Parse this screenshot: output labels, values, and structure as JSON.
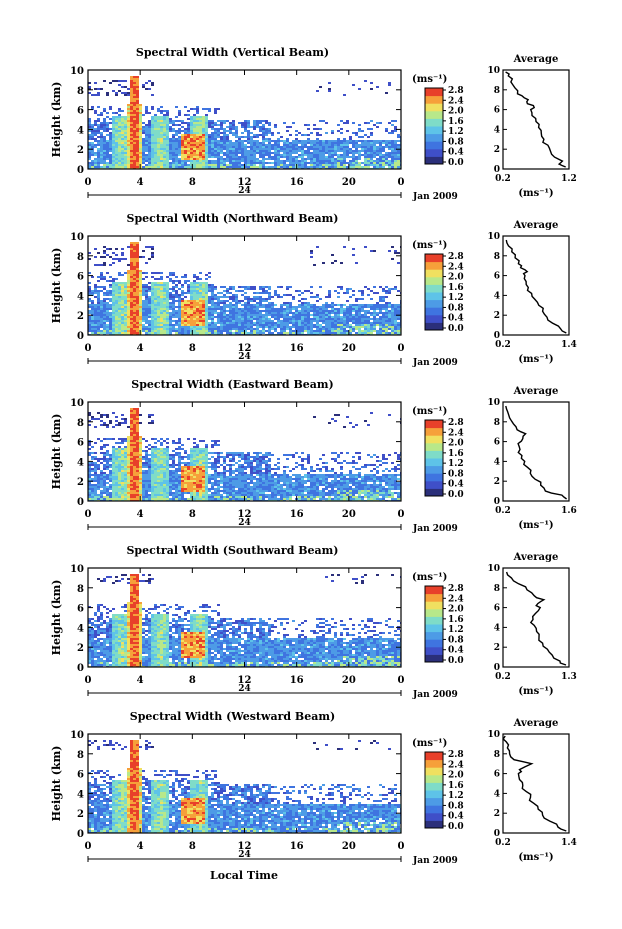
{
  "figure": {
    "xaxis_label": "Local Time",
    "date_label": "Jan 2009",
    "day_label": "24",
    "colorbar_unit": "(ms⁻¹)",
    "profile_title": "Average",
    "profile_xlabel": "(ms⁻¹)",
    "colors": {
      "colormap": [
        "#2b2f7a",
        "#3f4fc8",
        "#3f74e0",
        "#4d9be6",
        "#5ec3e8",
        "#7fdcc8",
        "#b8e88a",
        "#f0e060",
        "#f6a03a",
        "#e8402a"
      ],
      "profile_line": "#000000",
      "background": "#ffffff"
    }
  },
  "chart_data": [
    {
      "type": "heatmap",
      "title": "Spectral Width (Vertical Beam)",
      "xlabel": "",
      "ylabel": "Height (km)",
      "xlim": [
        0,
        24
      ],
      "ylim": [
        0,
        10
      ],
      "xticks": [
        "0",
        "4",
        "8",
        "12",
        "16",
        "20",
        "0"
      ],
      "yticks": [
        "0",
        "2",
        "4",
        "6",
        "8",
        "10"
      ],
      "colorbar": {
        "range": [
          0.0,
          2.8
        ],
        "ticks": [
          "2.8",
          "2.4",
          "2.0",
          "1.6",
          "1.2",
          "0.8",
          "0.4",
          "0.0"
        ]
      },
      "features": {
        "tower_hour": 3.5,
        "tower_top_km": 9.5,
        "cell_hours": [
          2.5,
          5.5,
          8.5
        ],
        "low_layer_top_km": 3.0,
        "high_patch_km": [
          7.5,
          9.0
        ]
      },
      "profile": {
        "title": "Average",
        "xlim": [
          0.2,
          1.2
        ],
        "xticks": [
          "0.2",
          "1.2"
        ],
        "yticks": [
          "0",
          "2",
          "4",
          "6",
          "8",
          "10"
        ],
        "points": [
          [
            1.15,
            0.2
          ],
          [
            1.05,
            0.5
          ],
          [
            1.1,
            0.8
          ],
          [
            0.98,
            1.2
          ],
          [
            0.92,
            1.8
          ],
          [
            0.88,
            2.4
          ],
          [
            0.82,
            3.0
          ],
          [
            0.78,
            3.6
          ],
          [
            0.74,
            4.2
          ],
          [
            0.7,
            4.8
          ],
          [
            0.64,
            5.4
          ],
          [
            0.62,
            6.0
          ],
          [
            0.66,
            6.4
          ],
          [
            0.56,
            6.8
          ],
          [
            0.52,
            7.2
          ],
          [
            0.42,
            7.6
          ],
          [
            0.38,
            8.2
          ],
          [
            0.32,
            8.8
          ],
          [
            0.28,
            9.4
          ],
          [
            0.24,
            9.8
          ]
        ]
      }
    },
    {
      "type": "heatmap",
      "title": "Spectral Width (Northward Beam)",
      "xlabel": "",
      "ylabel": "Height (km)",
      "xlim": [
        0,
        24
      ],
      "ylim": [
        0,
        10
      ],
      "xticks": [
        "0",
        "4",
        "8",
        "12",
        "16",
        "20",
        "0"
      ],
      "yticks": [
        "0",
        "2",
        "4",
        "6",
        "8",
        "10"
      ],
      "colorbar": {
        "range": [
          0.0,
          2.8
        ],
        "ticks": [
          "2.8",
          "2.4",
          "2.0",
          "1.6",
          "1.2",
          "0.8",
          "0.4",
          "0.0"
        ]
      },
      "features": {
        "tower_hour": 3.5,
        "tower_top_km": 9.5,
        "cell_hours": [
          2.5,
          5.5,
          8.5
        ],
        "low_layer_top_km": 3.2,
        "high_patch_km": [
          7.0,
          9.0
        ]
      },
      "profile": {
        "title": "Average",
        "xlim": [
          0.2,
          1.4
        ],
        "xticks": [
          "0.2",
          "1.4"
        ],
        "yticks": [
          "0",
          "2",
          "4",
          "6",
          "8",
          "10"
        ],
        "points": [
          [
            1.35,
            0.2
          ],
          [
            1.25,
            0.6
          ],
          [
            1.1,
            1.2
          ],
          [
            1.0,
            1.8
          ],
          [
            0.92,
            2.4
          ],
          [
            0.85,
            3.0
          ],
          [
            0.78,
            3.6
          ],
          [
            0.72,
            4.2
          ],
          [
            0.66,
            4.8
          ],
          [
            0.62,
            5.4
          ],
          [
            0.6,
            6.0
          ],
          [
            0.64,
            6.4
          ],
          [
            0.52,
            6.8
          ],
          [
            0.48,
            7.2
          ],
          [
            0.42,
            7.8
          ],
          [
            0.36,
            8.4
          ],
          [
            0.3,
            9.0
          ],
          [
            0.26,
            9.6
          ]
        ]
      }
    },
    {
      "type": "heatmap",
      "title": "Spectral Width (Eastward Beam)",
      "xlabel": "",
      "ylabel": "Height (km)",
      "xlim": [
        0,
        24
      ],
      "ylim": [
        0,
        10
      ],
      "xticks": [
        "0",
        "4",
        "8",
        "12",
        "16",
        "20",
        "0"
      ],
      "yticks": [
        "0",
        "2",
        "4",
        "6",
        "8",
        "10"
      ],
      "colorbar": {
        "range": [
          0.0,
          2.8
        ],
        "ticks": [
          "2.8",
          "2.4",
          "2.0",
          "1.6",
          "1.2",
          "0.8",
          "0.4",
          "0.0"
        ]
      },
      "features": {
        "tower_hour": 3.5,
        "tower_top_km": 9.5,
        "cell_hours": [
          2.5,
          5.5,
          8.5
        ],
        "low_layer_top_km": 2.8,
        "high_patch_km": [
          7.5,
          9.0
        ]
      },
      "profile": {
        "title": "Average",
        "xlim": [
          0.2,
          1.6
        ],
        "xticks": [
          "0.2",
          "1.6"
        ],
        "yticks": [
          "0",
          "2",
          "4",
          "6",
          "8",
          "10"
        ],
        "points": [
          [
            1.55,
            0.2
          ],
          [
            1.45,
            0.6
          ],
          [
            1.1,
            1.0
          ],
          [
            1.0,
            1.6
          ],
          [
            0.88,
            2.2
          ],
          [
            0.78,
            2.8
          ],
          [
            0.72,
            3.4
          ],
          [
            0.66,
            4.0
          ],
          [
            0.6,
            4.6
          ],
          [
            0.56,
            5.2
          ],
          [
            0.52,
            5.8
          ],
          [
            0.62,
            6.3
          ],
          [
            0.68,
            6.8
          ],
          [
            0.5,
            7.2
          ],
          [
            0.42,
            7.8
          ],
          [
            0.34,
            8.4
          ],
          [
            0.3,
            9.0
          ],
          [
            0.26,
            9.6
          ]
        ]
      }
    },
    {
      "type": "heatmap",
      "title": "Spectral Width (Southward Beam)",
      "xlabel": "",
      "ylabel": "Height (km)",
      "xlim": [
        0,
        24
      ],
      "ylim": [
        0,
        10
      ],
      "xticks": [
        "0",
        "4",
        "8",
        "12",
        "16",
        "20",
        "0"
      ],
      "yticks": [
        "0",
        "2",
        "4",
        "6",
        "8",
        "10"
      ],
      "colorbar": {
        "range": [
          0.0,
          2.8
        ],
        "ticks": [
          "2.8",
          "2.4",
          "2.0",
          "1.6",
          "1.2",
          "0.8",
          "0.4",
          "0.0"
        ]
      },
      "features": {
        "tower_hour": 3.5,
        "tower_top_km": 9.5,
        "cell_hours": [
          2.5,
          5.5,
          8.5
        ],
        "low_layer_top_km": 3.0,
        "high_patch_km": [
          8.5,
          9.5
        ]
      },
      "profile": {
        "title": "Average",
        "xlim": [
          0.2,
          1.3
        ],
        "xticks": [
          "0.2",
          "1.3"
        ],
        "yticks": [
          "0",
          "2",
          "4",
          "6",
          "8",
          "10"
        ],
        "points": [
          [
            1.25,
            0.2
          ],
          [
            1.15,
            0.6
          ],
          [
            1.02,
            1.2
          ],
          [
            0.94,
            1.8
          ],
          [
            0.86,
            2.4
          ],
          [
            0.8,
            3.0
          ],
          [
            0.76,
            3.6
          ],
          [
            0.72,
            4.2
          ],
          [
            0.7,
            4.8
          ],
          [
            0.74,
            5.4
          ],
          [
            0.82,
            6.0
          ],
          [
            0.78,
            6.4
          ],
          [
            0.88,
            6.8
          ],
          [
            0.72,
            7.2
          ],
          [
            0.6,
            7.8
          ],
          [
            0.46,
            8.4
          ],
          [
            0.34,
            9.0
          ],
          [
            0.26,
            9.6
          ]
        ]
      }
    },
    {
      "type": "heatmap",
      "title": "Spectral Width (Westward Beam)",
      "xlabel": "Local Time",
      "ylabel": "Height (km)",
      "xlim": [
        0,
        24
      ],
      "ylim": [
        0,
        10
      ],
      "xticks": [
        "0",
        "4",
        "8",
        "12",
        "16",
        "20",
        "0"
      ],
      "yticks": [
        "0",
        "2",
        "4",
        "6",
        "8",
        "10"
      ],
      "colorbar": {
        "range": [
          0.0,
          2.8
        ],
        "ticks": [
          "2.8",
          "2.4",
          "2.0",
          "1.6",
          "1.2",
          "0.8",
          "0.4",
          "0.0"
        ]
      },
      "features": {
        "tower_hour": 3.5,
        "tower_top_km": 9.5,
        "cell_hours": [
          2.5,
          5.5,
          8.5
        ],
        "low_layer_top_km": 3.0,
        "high_patch_km": [
          8.5,
          9.5
        ]
      },
      "profile": {
        "title": "Average",
        "xlim": [
          0.2,
          1.4
        ],
        "xticks": [
          "0.2",
          "1.4"
        ],
        "yticks": [
          "0",
          "2",
          "4",
          "6",
          "8",
          "10"
        ],
        "points": [
          [
            1.35,
            0.2
          ],
          [
            1.2,
            0.6
          ],
          [
            1.05,
            1.2
          ],
          [
            0.92,
            1.8
          ],
          [
            0.84,
            2.4
          ],
          [
            0.76,
            3.0
          ],
          [
            0.7,
            3.6
          ],
          [
            0.62,
            4.2
          ],
          [
            0.56,
            4.8
          ],
          [
            0.5,
            5.4
          ],
          [
            0.48,
            6.0
          ],
          [
            0.5,
            6.4
          ],
          [
            0.72,
            7.0
          ],
          [
            0.4,
            7.4
          ],
          [
            0.32,
            8.0
          ],
          [
            0.28,
            8.6
          ],
          [
            0.26,
            9.2
          ],
          [
            0.24,
            9.8
          ]
        ]
      }
    }
  ]
}
